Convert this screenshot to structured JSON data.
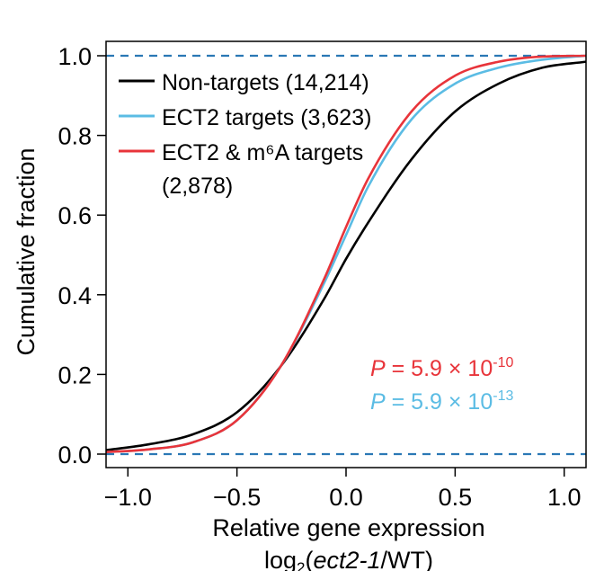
{
  "chart_data": {
    "type": "line",
    "title": "",
    "xlabel": "Relative gene expression",
    "xlabel2_parts": [
      "log",
      "2",
      "(",
      "ect2-1",
      "/WT)"
    ],
    "ylabel": "Cumulative fraction",
    "xlim": [
      -1.1,
      1.1
    ],
    "ylim": [
      0.0,
      1.0
    ],
    "x_ticks": [
      -1.0,
      -0.5,
      0.0,
      0.5,
      1.0
    ],
    "x_tick_labels": [
      "−1.0",
      "−0.5",
      "0.0",
      "0.5",
      "1.0"
    ],
    "y_ticks": [
      0.0,
      0.2,
      0.4,
      0.6,
      0.8,
      1.0
    ],
    "y_tick_labels": [
      "0.0",
      "0.2",
      "0.4",
      "0.6",
      "0.8",
      "1.0"
    ],
    "reference_lines": [
      0.0,
      1.0
    ],
    "grid": false,
    "legend_position": "top-left",
    "series": [
      {
        "name": "Non-targets (14,214)",
        "color": "#000000",
        "x": [
          -1.1,
          -0.9,
          -0.7,
          -0.5,
          -0.3,
          -0.1,
          0.0,
          0.1,
          0.3,
          0.5,
          0.7,
          0.9,
          1.1
        ],
        "y": [
          0.01,
          0.025,
          0.05,
          0.105,
          0.22,
          0.39,
          0.49,
          0.58,
          0.74,
          0.86,
          0.93,
          0.97,
          0.985
        ]
      },
      {
        "name": "ECT2 targets (3,623)",
        "color": "#5bbce4",
        "x": [
          -1.1,
          -0.9,
          -0.7,
          -0.5,
          -0.3,
          -0.1,
          0.0,
          0.1,
          0.3,
          0.5,
          0.7,
          0.9,
          1.1
        ],
        "y": [
          0.005,
          0.012,
          0.03,
          0.085,
          0.22,
          0.43,
          0.55,
          0.67,
          0.84,
          0.93,
          0.97,
          0.99,
          1.0
        ]
      },
      {
        "name": "ECT2 & m⁶A targets (2,878)",
        "label_lines": [
          "ECT2 & m⁶A targets",
          "(2,878)"
        ],
        "color": "#e8343a",
        "x": [
          -1.1,
          -0.9,
          -0.7,
          -0.5,
          -0.3,
          -0.1,
          0.0,
          0.1,
          0.3,
          0.5,
          0.7,
          0.9,
          1.1
        ],
        "y": [
          0.005,
          0.012,
          0.03,
          0.085,
          0.22,
          0.44,
          0.57,
          0.69,
          0.86,
          0.95,
          0.985,
          0.998,
          1.0
        ]
      }
    ],
    "annotations": [
      {
        "prefix": "P",
        "eq": " = 5.9 × 10",
        "exp": "-10",
        "color": "#e8343a"
      },
      {
        "prefix": "P",
        "eq": " = 5.9 × 10",
        "exp": "-13",
        "color": "#5bbce4"
      }
    ],
    "ref_line_color": "#2a78b5"
  }
}
